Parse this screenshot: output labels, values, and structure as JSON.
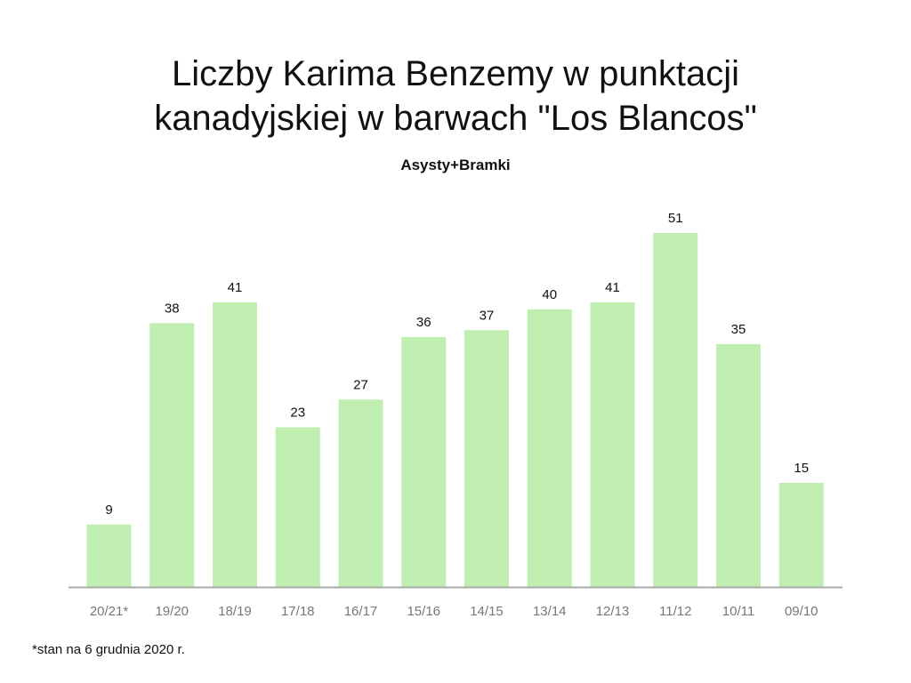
{
  "chart_data": {
    "type": "bar",
    "title_lines": [
      "Liczby Karima Benzemy w punktacji",
      "kanadyjskiej w barwach \"Los Blancos\""
    ],
    "subtitle": "Asysty+Bramki",
    "categories": [
      "20/21*",
      "19/20",
      "18/19",
      "17/18",
      "16/17",
      "15/16",
      "14/15",
      "13/14",
      "12/13",
      "11/12",
      "10/11",
      "09/10"
    ],
    "values": [
      9,
      38,
      41,
      23,
      27,
      36,
      37,
      40,
      41,
      51,
      35,
      15
    ],
    "ylim": [
      0,
      51
    ],
    "grid": false,
    "legend": "none",
    "bar_color": "#bfeeb0",
    "axis_color": "#aaaaaa",
    "tick_label_color": "#777777"
  },
  "footnote": "*stan na 6 grudnia 2020 r."
}
